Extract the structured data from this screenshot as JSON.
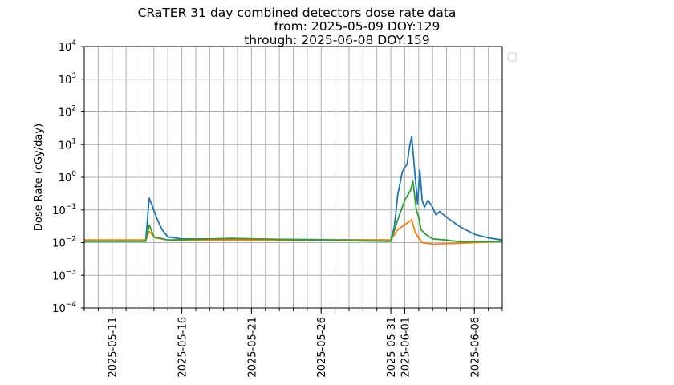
{
  "chart_data": {
    "type": "line",
    "title": "CRaTER 31 day combined detectors dose rate data",
    "subtitle_lines": [
      "from: 2025-05-09 DOY:129",
      "through: 2025-06-08 DOY:159"
    ],
    "xlabel": "",
    "ylabel": "Dose Rate (cGy/day)",
    "y_scale": "log",
    "ylim": [
      0.0001,
      10000
    ],
    "xlim": [
      "2025-05-09T00:00",
      "2025-06-08T00:00"
    ],
    "y_ticks": [
      {
        "value": 0.0001,
        "base": "10",
        "exp": "−4"
      },
      {
        "value": 0.001,
        "base": "10",
        "exp": "−3"
      },
      {
        "value": 0.01,
        "base": "10",
        "exp": "−2"
      },
      {
        "value": 0.1,
        "base": "10",
        "exp": "−1"
      },
      {
        "value": 1,
        "base": "10",
        "exp": "0"
      },
      {
        "value": 10,
        "base": "10",
        "exp": "1"
      },
      {
        "value": 100,
        "base": "10",
        "exp": "2"
      },
      {
        "value": 1000,
        "base": "10",
        "exp": "3"
      },
      {
        "value": 10000,
        "base": "10",
        "exp": "4"
      }
    ],
    "x_tick_labels": [
      "2025-05-11",
      "2025-05-16",
      "2025-05-21",
      "2025-05-26",
      "2025-05-31",
      "2025-06-01",
      "2025-06-06"
    ],
    "grid": true,
    "legend": "upper-right-outside-empty",
    "series": [
      {
        "color": "#1f77b4",
        "points": [
          [
            "2025-05-09T00:00",
            0.012
          ],
          [
            "2025-05-13T00:00",
            0.012
          ],
          [
            "2025-05-13T10:00",
            0.012
          ],
          [
            "2025-05-13T16:00",
            0.23
          ],
          [
            "2025-05-13T22:00",
            0.12
          ],
          [
            "2025-05-14T06:00",
            0.05
          ],
          [
            "2025-05-14T14:00",
            0.025
          ],
          [
            "2025-05-15T00:00",
            0.015
          ],
          [
            "2025-05-16T00:00",
            0.013
          ],
          [
            "2025-05-20T00:00",
            0.013
          ],
          [
            "2025-05-25T00:00",
            0.0125
          ],
          [
            "2025-05-31T00:00",
            0.012
          ],
          [
            "2025-05-31T06:00",
            0.03
          ],
          [
            "2025-05-31T12:00",
            0.3
          ],
          [
            "2025-05-31T20:00",
            1.5
          ],
          [
            "2025-06-01T04:00",
            2.5
          ],
          [
            "2025-06-01T08:00",
            8
          ],
          [
            "2025-06-01T12:00",
            18
          ],
          [
            "2025-06-01T18:00",
            1.0
          ],
          [
            "2025-06-01T22:00",
            0.15
          ],
          [
            "2025-06-02T02:00",
            1.7
          ],
          [
            "2025-06-02T06:00",
            0.2
          ],
          [
            "2025-06-02T10:00",
            0.12
          ],
          [
            "2025-06-02T16:00",
            0.2
          ],
          [
            "2025-06-03T00:00",
            0.12
          ],
          [
            "2025-06-03T06:00",
            0.07
          ],
          [
            "2025-06-03T12:00",
            0.09
          ],
          [
            "2025-06-04T00:00",
            0.06
          ],
          [
            "2025-06-05T00:00",
            0.03
          ],
          [
            "2025-06-06T00:00",
            0.018
          ],
          [
            "2025-06-07T00:00",
            0.014
          ],
          [
            "2025-06-08T00:00",
            0.012
          ]
        ]
      },
      {
        "color": "#ff7f0e",
        "points": [
          [
            "2025-05-09T00:00",
            0.012
          ],
          [
            "2025-05-13T10:00",
            0.012
          ],
          [
            "2025-05-13T16:00",
            0.022
          ],
          [
            "2025-05-14T02:00",
            0.014
          ],
          [
            "2025-05-15T00:00",
            0.012
          ],
          [
            "2025-05-31T00:00",
            0.012
          ],
          [
            "2025-05-31T12:00",
            0.025
          ],
          [
            "2025-06-01T00:00",
            0.035
          ],
          [
            "2025-06-01T12:00",
            0.05
          ],
          [
            "2025-06-01T18:00",
            0.02
          ],
          [
            "2025-06-02T06:00",
            0.01
          ],
          [
            "2025-06-03T00:00",
            0.009
          ],
          [
            "2025-06-05T00:00",
            0.0095
          ],
          [
            "2025-06-08T00:00",
            0.011
          ]
        ]
      },
      {
        "color": "#2ca02c",
        "points": [
          [
            "2025-05-09T00:00",
            0.011
          ],
          [
            "2025-05-13T10:00",
            0.011
          ],
          [
            "2025-05-13T16:00",
            0.035
          ],
          [
            "2025-05-14T00:00",
            0.015
          ],
          [
            "2025-05-15T00:00",
            0.012
          ],
          [
            "2025-05-19T12:00",
            0.0135
          ],
          [
            "2025-05-25T00:00",
            0.012
          ],
          [
            "2025-05-31T00:00",
            0.011
          ],
          [
            "2025-05-31T12:00",
            0.05
          ],
          [
            "2025-06-01T00:00",
            0.2
          ],
          [
            "2025-06-01T10:00",
            0.4
          ],
          [
            "2025-06-01T14:00",
            0.75
          ],
          [
            "2025-06-01T20:00",
            0.1
          ],
          [
            "2025-06-02T00:00",
            0.06
          ],
          [
            "2025-06-02T04:00",
            0.025
          ],
          [
            "2025-06-02T12:00",
            0.018
          ],
          [
            "2025-06-03T00:00",
            0.013
          ],
          [
            "2025-06-04T00:00",
            0.012
          ],
          [
            "2025-06-05T00:00",
            0.0105
          ],
          [
            "2025-06-08T00:00",
            0.011
          ]
        ]
      }
    ]
  }
}
